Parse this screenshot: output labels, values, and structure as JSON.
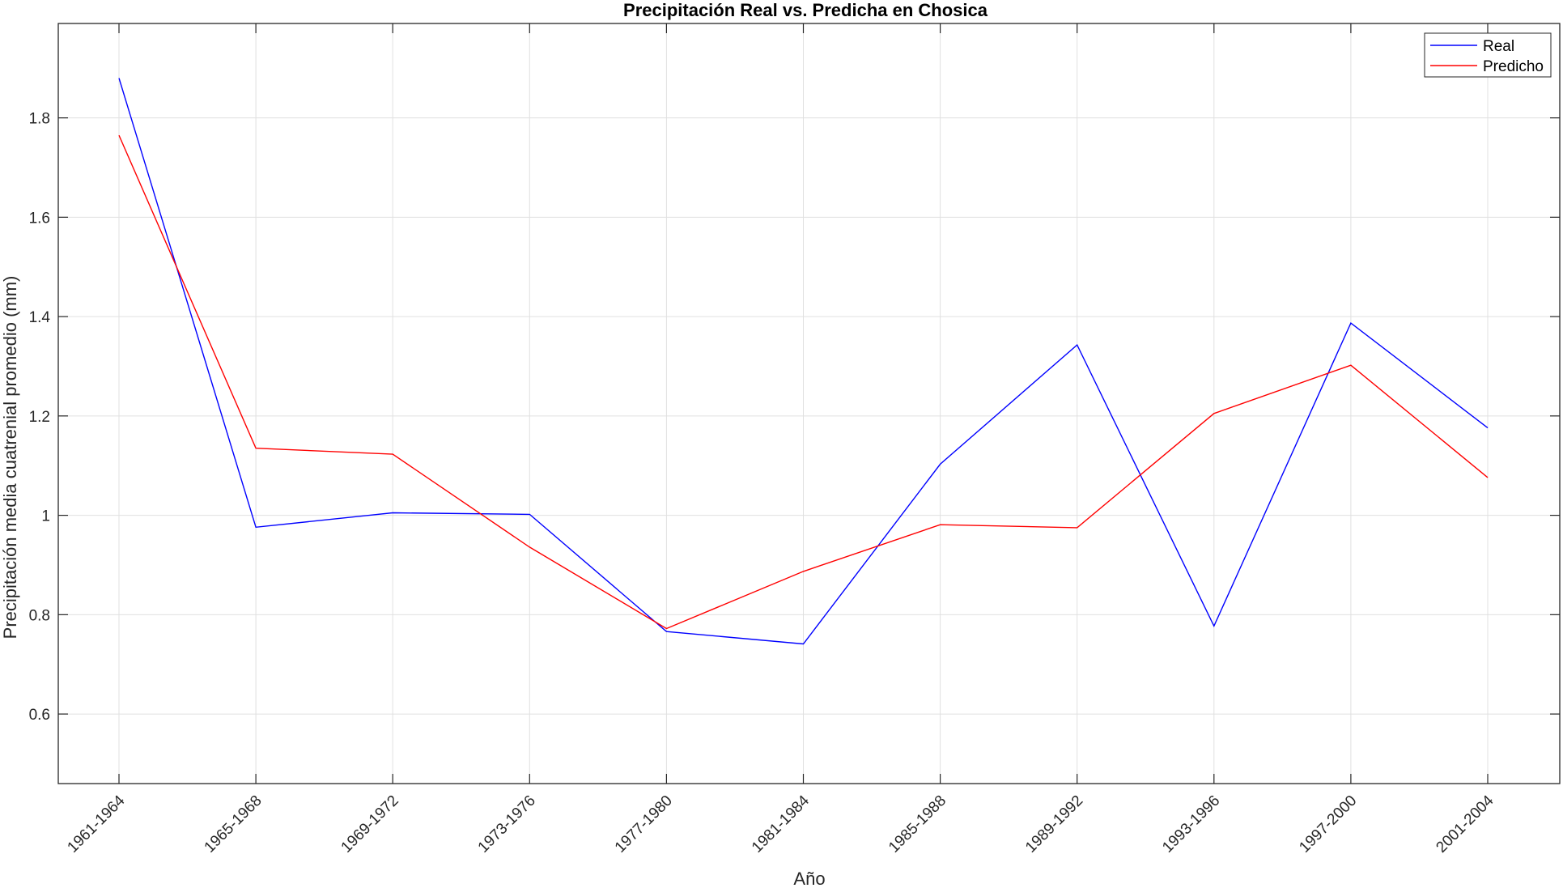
{
  "chart_data": {
    "type": "line",
    "title": "Precipitación Real vs. Predicha en Chosica",
    "xlabel": "Año",
    "ylabel": "Precipitación media cuatrenial promedio (mm)",
    "categories": [
      "1961-1964",
      "1965-1968",
      "1969-1972",
      "1973-1976",
      "1977-1980",
      "1981-1984",
      "1985-1988",
      "1989-1992",
      "1993-1996",
      "1997-2000",
      "2001-2004"
    ],
    "series": [
      {
        "name": "Real",
        "color": "#0000ff",
        "values": [
          1.88,
          0.976,
          1.005,
          1.002,
          0.766,
          0.741,
          1.103,
          1.343,
          0.777,
          1.387,
          1.176
        ]
      },
      {
        "name": "Predicho",
        "color": "#ff0000",
        "values": [
          1.765,
          1.135,
          1.123,
          0.936,
          0.772,
          0.887,
          0.981,
          0.975,
          1.205,
          1.302,
          1.076
        ]
      }
    ],
    "ylim": [
      0.46,
      1.99
    ],
    "yticks": [
      "0.6",
      "0.8",
      "1",
      "1.2",
      "1.4",
      "1.6",
      "1.8"
    ],
    "grid": true,
    "legend_position": "top-right"
  }
}
